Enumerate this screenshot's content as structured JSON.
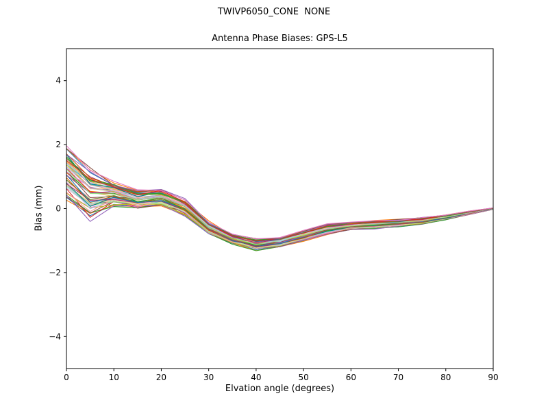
{
  "chart_data": {
    "type": "line",
    "title": "TWIVP6050_CONE  NONE",
    "subtitle": "Antenna Phase Biases: GPS-L5",
    "xlabel": "Elvation angle (degrees)",
    "ylabel": "Bias (mm)",
    "xlim": [
      0,
      90
    ],
    "ylim": [
      -5,
      5
    ],
    "xticks": [
      0,
      10,
      20,
      30,
      40,
      50,
      60,
      70,
      80,
      90
    ],
    "yticks": [
      -4,
      -2,
      0,
      2,
      4
    ],
    "grid": false,
    "legend": "none",
    "x": [
      0,
      5,
      10,
      15,
      20,
      25,
      30,
      35,
      40,
      45,
      50,
      55,
      60,
      65,
      70,
      75,
      80,
      85,
      90
    ],
    "ensemble": {
      "count": 55,
      "description": "Bundle of ~55 overlapping antenna phase-bias curves; each curve lies within mean ± spread at every elevation angle",
      "mean": [
        1.1,
        0.45,
        0.45,
        0.28,
        0.35,
        0.05,
        -0.6,
        -0.95,
        -1.12,
        -1.05,
        -0.85,
        -0.65,
        -0.55,
        -0.5,
        -0.45,
        -0.38,
        -0.27,
        -0.13,
        0.0
      ],
      "spread": [
        0.8,
        0.75,
        0.35,
        0.27,
        0.25,
        0.25,
        0.2,
        0.15,
        0.17,
        0.15,
        0.15,
        0.15,
        0.12,
        0.12,
        0.11,
        0.1,
        0.07,
        0.05,
        0.02
      ]
    },
    "palette": [
      "#1f77b4",
      "#ff7f0e",
      "#2ca02c",
      "#d62728",
      "#9467bd",
      "#8c564b",
      "#e377c2",
      "#7f7f7f",
      "#bcbd22",
      "#17becf",
      "#aec7e8",
      "#ffbb78",
      "#98df8a",
      "#ff9896",
      "#c5b0d5",
      "#c49c94",
      "#f7b6d2",
      "#dbdb8d",
      "#9edae5",
      "#e7ba52",
      "#008080",
      "#b0306a",
      "#6b8e23",
      "#cc5500"
    ],
    "axis_color": "#000000",
    "background_color": "#ffffff"
  }
}
